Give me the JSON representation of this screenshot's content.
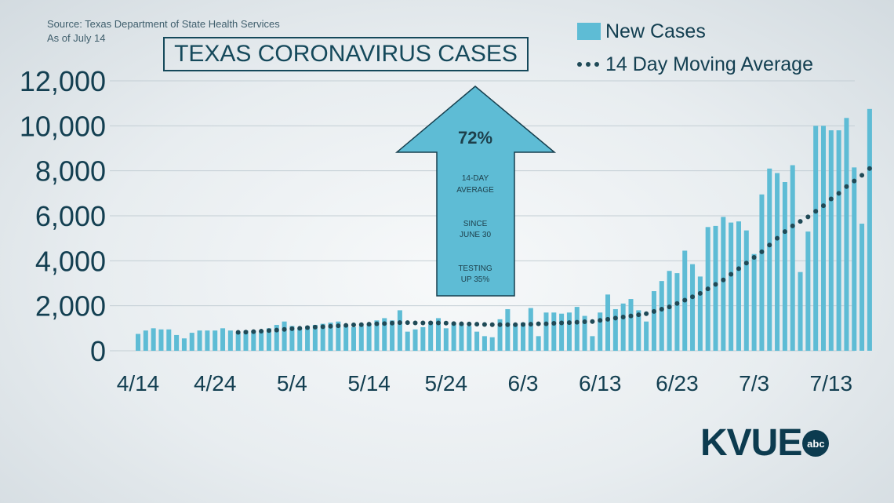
{
  "source_line1": "Source: Texas Department of State Health Services",
  "source_line2": "As of July 14",
  "title": "TEXAS CORONAVIRUS CASES",
  "logo": {
    "text": "KVUE",
    "badge": "abc"
  },
  "arrow": {
    "percent": "72%",
    "line1": "14-DAY",
    "line2": "AVERAGE",
    "line3": "SINCE",
    "line4": "JUNE 30",
    "line5": "TESTING",
    "line6": "UP 35%"
  },
  "colors": {
    "bars": "#5ebcd5",
    "average_dots": "#1f4a57",
    "arrow_fill": "#5ebcd5",
    "text": "#133f51"
  },
  "chart_data": {
    "type": "bar",
    "title": "TEXAS CORONAVIRUS CASES",
    "xlabel": "",
    "ylabel": "",
    "ylim": [
      0,
      12000
    ],
    "yticks": [
      "0",
      "2,000",
      "4,000",
      "6,000",
      "8,000",
      "10,000",
      "12,000"
    ],
    "xticks": [
      "4/14",
      "4/24",
      "5/4",
      "5/14",
      "5/24",
      "6/3",
      "6/13",
      "6/23",
      "7/3",
      "7/13"
    ],
    "legend": "top-right",
    "grid": true,
    "series": [
      {
        "name": "New Cases",
        "type": "bar",
        "values": [
          750,
          900,
          1000,
          950,
          950,
          700,
          550,
          800,
          900,
          900,
          900,
          1000,
          900,
          800,
          900,
          900,
          900,
          1000,
          1150,
          1300,
          1100,
          1000,
          1100,
          1150,
          1200,
          1250,
          1300,
          1100,
          1050,
          1100,
          1200,
          1350,
          1450,
          1350,
          1800,
          850,
          950,
          1050,
          1300,
          1450,
          1000,
          1250,
          1200,
          1100,
          850,
          650,
          600,
          1400,
          1850,
          1200,
          1250,
          1900,
          650,
          1700,
          1700,
          1650,
          1700,
          1950,
          1550,
          650,
          1700,
          2500,
          1850,
          2100,
          2300,
          1800,
          1300,
          2650,
          3100,
          3550,
          3450,
          4450,
          3850,
          3300,
          5500,
          5550,
          5950,
          5700,
          5750,
          5350,
          4300,
          6950,
          8100,
          7900,
          7500,
          8250,
          3500,
          5300,
          10000,
          10000,
          9800,
          9800,
          10350,
          8150,
          5650,
          10750
        ]
      },
      {
        "name": "14 Day Moving Average",
        "type": "line",
        "values": [
          null,
          null,
          null,
          null,
          null,
          null,
          null,
          null,
          null,
          null,
          null,
          null,
          null,
          820,
          830,
          850,
          870,
          900,
          920,
          950,
          980,
          1000,
          1030,
          1050,
          1070,
          1090,
          1110,
          1130,
          1150,
          1160,
          1180,
          1200,
          1210,
          1230,
          1250,
          1250,
          1240,
          1240,
          1240,
          1240,
          1230,
          1210,
          1200,
          1190,
          1180,
          1170,
          1160,
          1160,
          1160,
          1160,
          1170,
          1180,
          1200,
          1200,
          1220,
          1240,
          1250,
          1270,
          1290,
          1300,
          1350,
          1400,
          1450,
          1500,
          1550,
          1600,
          1650,
          1750,
          1850,
          1950,
          2100,
          2250,
          2400,
          2550,
          2750,
          2950,
          3150,
          3400,
          3650,
          3900,
          4150,
          4400,
          4700,
          5000,
          5300,
          5550,
          5750,
          5950,
          6200,
          6450,
          6750,
          7000,
          7300,
          7550,
          7800,
          8100
        ]
      }
    ]
  }
}
